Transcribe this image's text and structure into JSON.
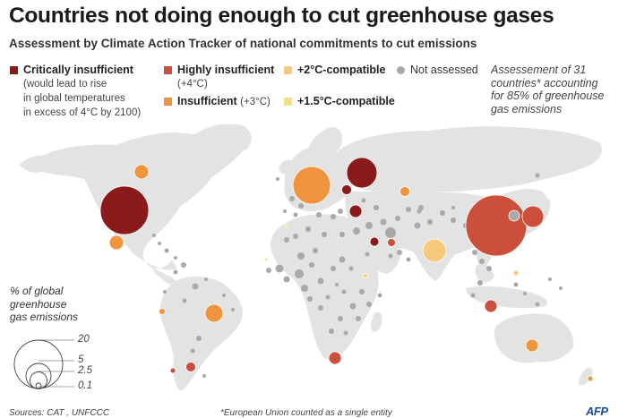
{
  "title": "Countries not doing enough to cut greenhouse gases",
  "subtitle": "Assessment by Climate Action Tracker of national commitments to cut emissions",
  "legend": {
    "critically": {
      "label": "Critically insufficient",
      "desc": [
        "(would lead to rise",
        "in global temperatures",
        "in excess of 4°C by 2100)"
      ],
      "color": "#8b1a1a"
    },
    "highly": {
      "label": "Highly insufficient",
      "desc": "(+4°C)",
      "color": "#cc4f3c"
    },
    "insufficient": {
      "label": "Insufficient",
      "desc": "(+3°C)",
      "color": "#f0953e"
    },
    "two_deg": {
      "label": "+2°C-compatible",
      "color": "#f8c97a"
    },
    "onefive": {
      "label": "+1.5°C-compatible",
      "color": "#f6e07a"
    },
    "not_assessed": {
      "label": "Not assessed",
      "color": "#a9a9a9"
    }
  },
  "note": [
    "Assessement of 31",
    "countries* accounting",
    "for 85% of greenhouse",
    "gas emissions"
  ],
  "size_legend": {
    "title": [
      "% of global",
      "greenhouse",
      "gas emissions"
    ],
    "values": [
      "20",
      "5",
      "2.5",
      "0.1"
    ]
  },
  "footer": {
    "sources": "Sources: CAT , UNFCCC",
    "footnote": "*European Union counted as a single entity",
    "credit": "AFP"
  },
  "map": {
    "land_color": "#e3e3e3",
    "bubbles": [
      {
        "region": "United States",
        "category": "critically",
        "share": 20
      },
      {
        "region": "Russia",
        "category": "critically",
        "share": 4.5
      },
      {
        "region": "China",
        "category": "highly",
        "share": 24
      },
      {
        "region": "European Union",
        "category": "insufficient",
        "share": 8.5
      },
      {
        "region": "Japan",
        "category": "highly",
        "share": 2.7
      },
      {
        "region": "India",
        "category": "two_deg",
        "share": 3.5
      },
      {
        "region": "Brazil",
        "category": "insufficient",
        "share": 2
      },
      {
        "region": "Canada",
        "category": "insufficient",
        "share": 1.5
      },
      {
        "region": "Mexico",
        "category": "insufficient",
        "share": 1.5
      },
      {
        "region": "South Africa",
        "category": "highly",
        "share": 1.2
      },
      {
        "region": "Indonesia",
        "category": "highly",
        "share": 1.3
      },
      {
        "region": "Australia",
        "category": "insufficient",
        "share": 1.1
      },
      {
        "region": "Turkey",
        "category": "critically",
        "share": 1
      },
      {
        "region": "Iran",
        "category": "critically",
        "share": 0.5
      },
      {
        "region": "Saudi Arabia",
        "category": "highly",
        "share": 0.5
      },
      {
        "region": "Ukraine",
        "category": "critically",
        "share": 0.6
      },
      {
        "region": "Kazakhstan",
        "category": "insufficient",
        "share": 0.6
      },
      {
        "region": "Argentina",
        "category": "highly",
        "share": 0.7
      },
      {
        "region": "Chile",
        "category": "highly",
        "share": 0.3
      },
      {
        "region": "Peru",
        "category": "insufficient",
        "share": 0.3
      },
      {
        "region": "New Zealand",
        "category": "insufficient",
        "share": 0.2
      },
      {
        "region": "Korea",
        "category": "not_assessed",
        "share": 1.2
      },
      {
        "region": "Philippines",
        "category": "two_deg",
        "share": 0.3
      },
      {
        "region": "Morocco",
        "category": "onefive",
        "share": 0.1
      },
      {
        "region": "Gambia",
        "category": "onefive",
        "share": 0.05
      },
      {
        "region": "Ethiopia",
        "category": "two_deg",
        "share": 0.2
      }
    ]
  }
}
